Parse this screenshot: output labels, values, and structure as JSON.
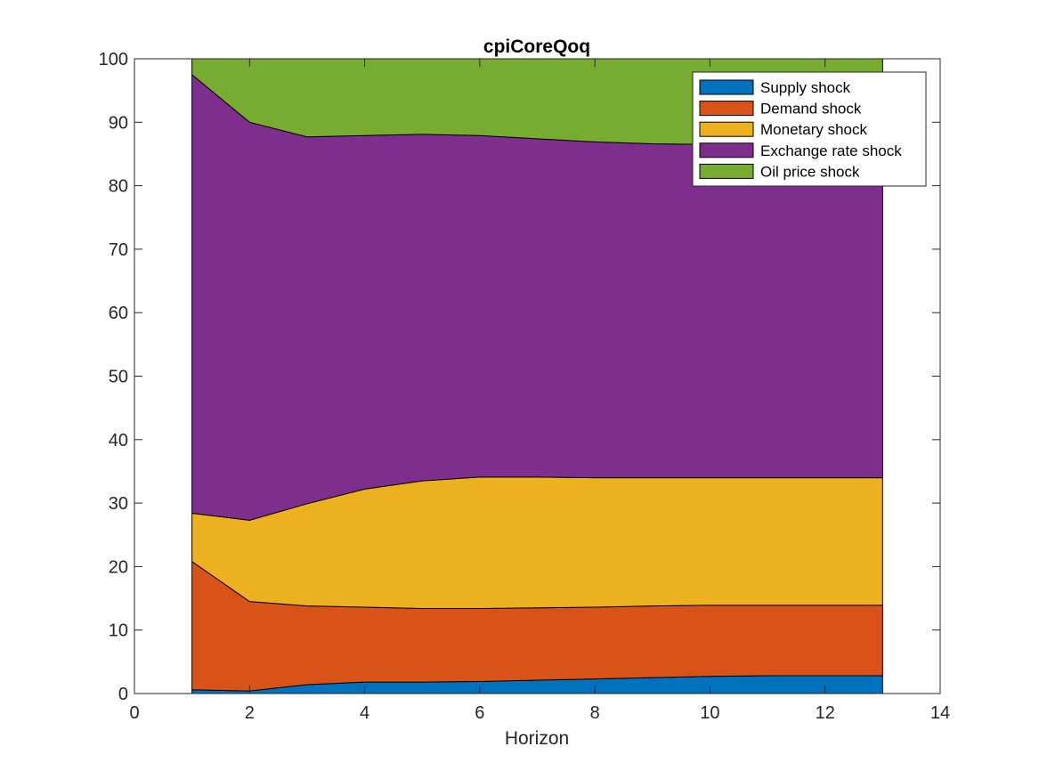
{
  "chart_data": {
    "type": "area",
    "stacked": true,
    "title": "cpiCoreQoq",
    "xlabel": "Horizon",
    "ylabel": "",
    "xlim": [
      0,
      14
    ],
    "ylim": [
      0,
      100
    ],
    "xticks": [
      0,
      2,
      4,
      6,
      8,
      10,
      12,
      14
    ],
    "yticks": [
      0,
      10,
      20,
      30,
      40,
      50,
      60,
      70,
      80,
      90,
      100
    ],
    "grid": false,
    "legend_position": "top-right",
    "x": [
      1,
      2,
      3,
      4,
      5,
      6,
      7,
      8,
      9,
      10,
      11,
      12,
      13
    ],
    "series": [
      {
        "name": "Supply shock",
        "color": "#0072BD",
        "values": [
          0.6,
          0.4,
          1.4,
          1.8,
          1.8,
          1.9,
          2.1,
          2.3,
          2.5,
          2.7,
          2.8,
          2.8,
          2.8
        ]
      },
      {
        "name": "Demand shock",
        "color": "#D95319",
        "values": [
          20.2,
          14.1,
          12.4,
          11.8,
          11.6,
          11.5,
          11.4,
          11.3,
          11.3,
          11.2,
          11.1,
          11.1,
          11.1
        ]
      },
      {
        "name": "Monetary shock",
        "color": "#EDB120",
        "values": [
          7.6,
          12.8,
          16.1,
          18.6,
          20.1,
          20.7,
          20.6,
          20.4,
          20.2,
          20.1,
          20.1,
          20.1,
          20.1
        ]
      },
      {
        "name": "Exchange rate shock",
        "color": "#7E2F8E",
        "values": [
          69.1,
          62.7,
          57.8,
          55.7,
          54.6,
          53.8,
          53.3,
          52.9,
          52.6,
          52.5,
          52.5,
          52.5,
          52.5
        ]
      },
      {
        "name": "Oil price shock",
        "color": "#77AC30",
        "values": [
          2.5,
          10.0,
          12.3,
          12.1,
          11.9,
          12.1,
          12.6,
          13.1,
          13.4,
          13.5,
          13.5,
          13.5,
          13.5
        ]
      }
    ]
  }
}
